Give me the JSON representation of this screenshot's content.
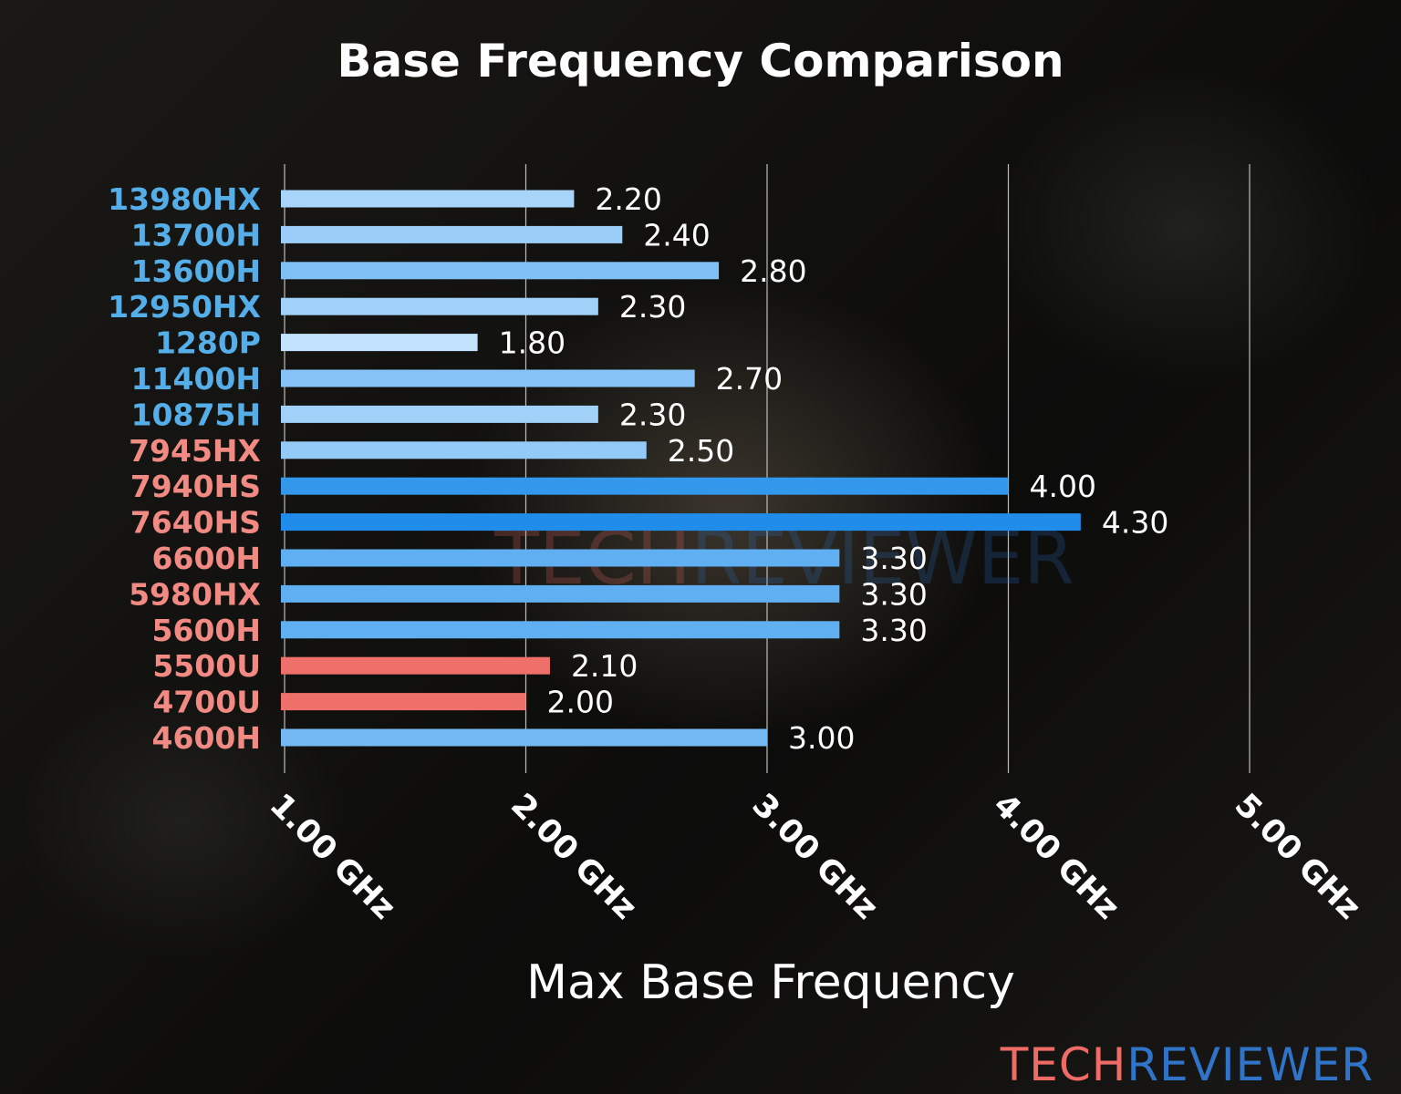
{
  "chart_data": {
    "type": "bar",
    "orientation": "horizontal",
    "title": "Base Frequency Comparison",
    "xlabel": "Max Base Frequency",
    "ylabel": "",
    "categories": [
      "13980HX",
      "13700H",
      "13600H",
      "12950HX",
      "1280P",
      "11400H",
      "10875H",
      "7945HX",
      "7940HS",
      "7640HS",
      "6600H",
      "5980HX",
      "5600H",
      "5500U",
      "4700U",
      "4600H"
    ],
    "values": [
      2.2,
      2.4,
      2.8,
      2.3,
      1.8,
      2.7,
      2.3,
      2.5,
      4.0,
      4.3,
      3.3,
      3.3,
      3.3,
      2.1,
      2.0,
      3.0
    ],
    "value_labels": [
      "2.20",
      "2.40",
      "2.80",
      "2.30",
      "1.80",
      "2.70",
      "2.30",
      "2.50",
      "4.00",
      "4.30",
      "3.30",
      "3.30",
      "3.30",
      "2.10",
      "2.00",
      "3.00"
    ],
    "category_colors": [
      "blue",
      "blue",
      "blue",
      "blue",
      "blue",
      "blue",
      "blue",
      "red",
      "red",
      "red",
      "red",
      "red",
      "red",
      "red",
      "red",
      "red"
    ],
    "bar_colors": [
      "scale",
      "scale",
      "scale",
      "scale",
      "scale",
      "scale",
      "scale",
      "scale",
      "scale",
      "scale",
      "scale",
      "scale",
      "scale",
      "red",
      "red",
      "scale"
    ],
    "xticks": [
      1,
      2,
      3,
      4,
      5
    ],
    "xtick_labels": [
      "1.00 GHz",
      "2.00 GHz",
      "3.00 GHz",
      "4.00 GHz",
      "5.00 GHz"
    ],
    "xlim": [
      1.0,
      5.0
    ],
    "grid": "vertical",
    "legend": "none"
  },
  "colors": {
    "label_blue": "#56aee8",
    "label_red": "#f08a82",
    "bar_red": "#ef6f6a",
    "bar_light": "#c2e2fd",
    "bar_dark": "#1f8de9"
  },
  "watermark": {
    "part1": "TECH",
    "part2": "REVIEWER",
    "color1": "#ef6b66",
    "color2": "#2f74c8"
  }
}
